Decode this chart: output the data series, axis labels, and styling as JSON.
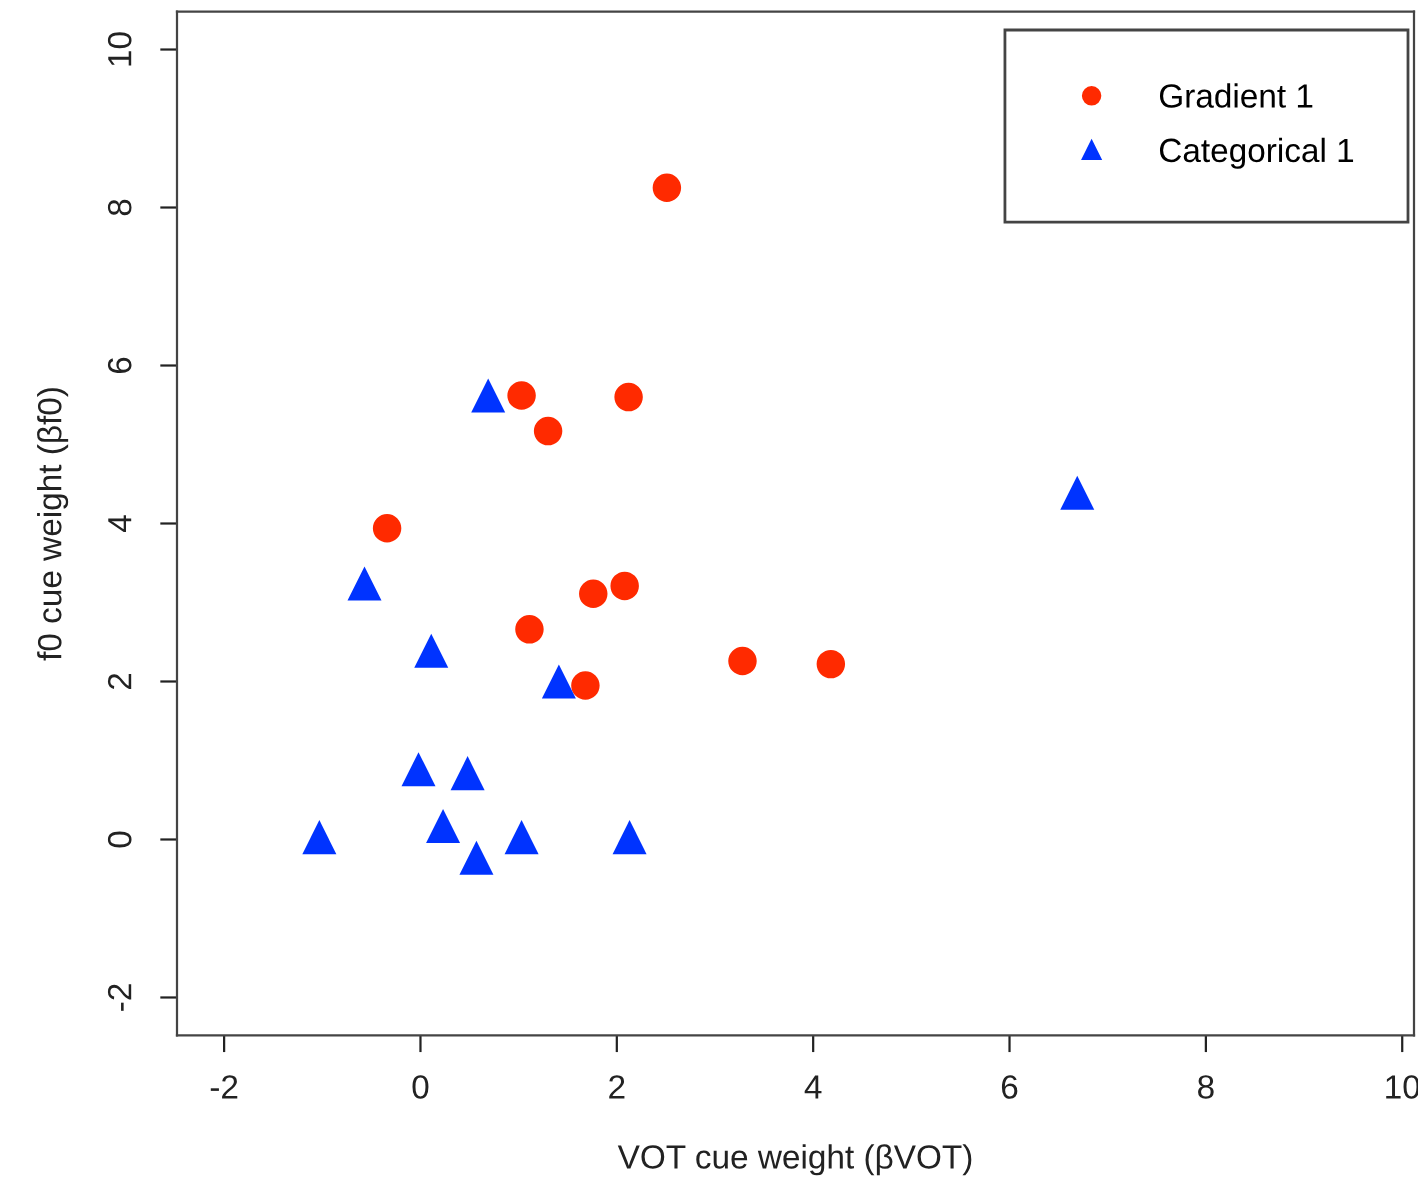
{
  "chart_data": {
    "type": "scatter",
    "xlabel": "VOT cue weight (βVOT)",
    "ylabel": "f0 cue weight (βf0)",
    "xlim": [
      -2.48,
      10.12
    ],
    "ylim": [
      -2.48,
      10.48
    ],
    "xticks": [
      -2,
      0,
      2,
      4,
      6,
      8,
      10
    ],
    "yticks": [
      -2,
      0,
      2,
      4,
      6,
      8,
      10
    ],
    "grid": false,
    "legend": "top right",
    "series": [
      {
        "name": "Gradient 1",
        "color": "#ff2a00",
        "marker": "circle",
        "x": [
          2.51,
          1.03,
          1.3,
          2.12,
          -0.34,
          1.76,
          2.08,
          1.11,
          1.68,
          3.28,
          4.18
        ],
        "values": [
          8.25,
          5.62,
          5.17,
          5.6,
          3.94,
          3.11,
          3.21,
          2.66,
          1.95,
          2.26,
          2.22
        ]
      },
      {
        "name": "Categorical 1",
        "color": "#0033ff",
        "marker": "triangle",
        "x": [
          0.69,
          -0.57,
          0.11,
          1.41,
          -0.02,
          0.48,
          -1.03,
          0.23,
          0.57,
          1.03,
          2.13,
          6.69
        ],
        "values": [
          5.62,
          3.24,
          2.39,
          2.0,
          0.89,
          0.84,
          0.03,
          0.17,
          -0.23,
          0.03,
          0.03,
          4.39
        ]
      }
    ]
  }
}
